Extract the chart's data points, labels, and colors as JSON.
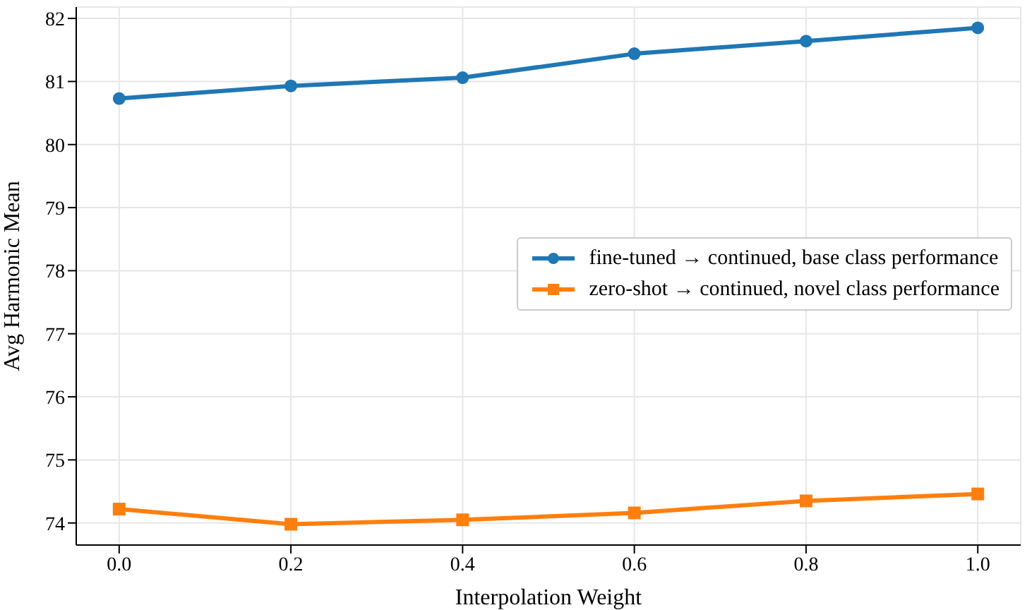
{
  "chart_data": {
    "type": "line",
    "xlabel": "Interpolation Weight",
    "ylabel": "Avg Harmonic Mean",
    "x": [
      0,
      0.2,
      0.4,
      0.6,
      0.8,
      1.0
    ],
    "series": [
      {
        "name": "fine-tuned → continued, base class performance",
        "color": "#1f77b4",
        "marker": "circle",
        "values": [
          80.73,
          80.93,
          81.06,
          81.44,
          81.64,
          81.85
        ]
      },
      {
        "name": "zero-shot → continued, novel class performance",
        "color": "#ff7f0e",
        "marker": "square",
        "values": [
          74.22,
          73.98,
          74.05,
          74.16,
          74.35,
          74.46
        ]
      }
    ],
    "xlim": [
      -0.05,
      1.05
    ],
    "xticks": [
      {
        "value": 0,
        "label": "0.0"
      },
      {
        "value": 0.2,
        "label": "0.2"
      },
      {
        "value": 0.4,
        "label": "0.4"
      },
      {
        "value": 0.6,
        "label": "0.6"
      },
      {
        "value": 0.8,
        "label": "0.8"
      },
      {
        "value": 1,
        "label": "1.0"
      }
    ],
    "ylim": [
      73.65,
      82.18
    ],
    "yticks": [
      74,
      75,
      76,
      77,
      78,
      79,
      80,
      81,
      82
    ],
    "grid": true,
    "legend": "center right",
    "line_style": "solid"
  }
}
